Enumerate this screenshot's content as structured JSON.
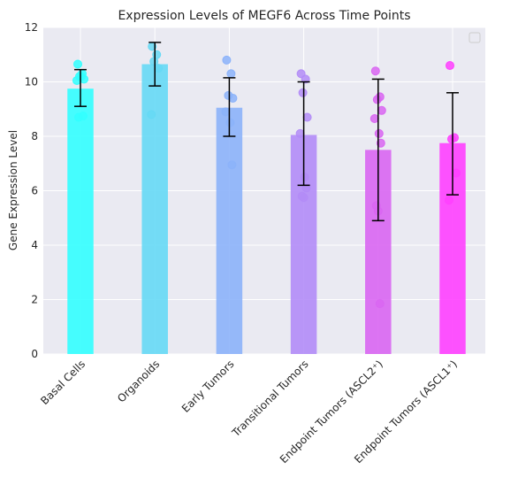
{
  "chart_data": {
    "type": "bar",
    "title": "Expression Levels of MEGF6 Across Time Points",
    "xlabel": "",
    "ylabel": "Gene Expression Level",
    "ylim": [
      0,
      12
    ],
    "yticks": [
      0,
      2,
      4,
      6,
      8,
      10,
      12
    ],
    "grid": true,
    "legend": "top-right (empty)",
    "categories": [
      "Basal Cells",
      "Organoids",
      "Early Tumors",
      "Transitional Tumors",
      "Endpoint Tumors (ASCL2⁺)",
      "Endpoint Tumors (ASCL1⁺)"
    ],
    "values": [
      9.75,
      10.65,
      9.05,
      8.05,
      7.5,
      7.75
    ],
    "error_low": [
      9.1,
      9.85,
      8.0,
      6.2,
      4.9,
      5.85
    ],
    "error_high": [
      10.45,
      11.45,
      10.15,
      10.0,
      10.1,
      9.6
    ],
    "colors": [
      "#33ffff",
      "#66d9f5",
      "#8cb3fa",
      "#b38cf7",
      "#d966f2",
      "#ff40ff"
    ],
    "points": [
      [
        10.65,
        10.3,
        10.2,
        10.1,
        10.05,
        10.2,
        8.75,
        8.7
      ],
      [
        11.3,
        11.0,
        10.75,
        10.5,
        8.8
      ],
      [
        10.8,
        10.3,
        9.5,
        9.4,
        8.9,
        8.5,
        6.95
      ],
      [
        10.3,
        10.1,
        9.6,
        8.7,
        8.1,
        6.5,
        6.1,
        5.8,
        5.75
      ],
      [
        10.4,
        9.45,
        9.35,
        8.95,
        8.65,
        8.1,
        7.75,
        5.45,
        5.25,
        1.85
      ],
      [
        10.6,
        7.95,
        7.9,
        6.65,
        5.65
      ]
    ]
  }
}
